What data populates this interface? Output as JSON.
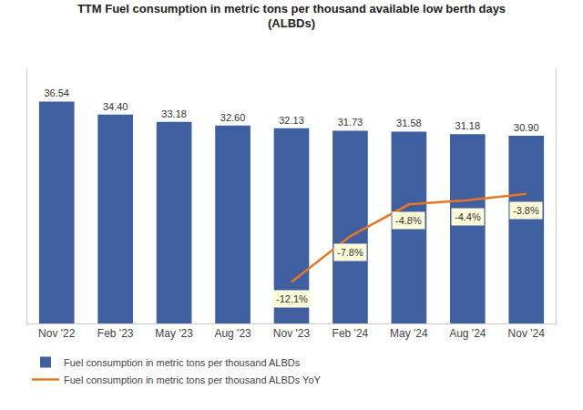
{
  "chart_data": {
    "type": "bar",
    "title": "TTM Fuel consumption in metric tons per thousand available low berth days\n(ALBDs)",
    "categories": [
      "Nov '22",
      "Feb '23",
      "May '23",
      "Aug '23",
      "Nov '23",
      "Feb '24",
      "May '24",
      "Aug '24",
      "Nov '24"
    ],
    "series": [
      {
        "name": "Fuel consumption in metric tons per thousand ALBDs",
        "type": "bar",
        "color": "#3F5FA0",
        "values": [
          36.54,
          34.4,
          33.18,
          32.6,
          32.13,
          31.73,
          31.58,
          31.18,
          30.9
        ],
        "value_labels": [
          "36.54",
          "34.40",
          "33.18",
          "32.60",
          "32.13",
          "31.73",
          "31.58",
          "31.18",
          "30.90"
        ]
      },
      {
        "name": "Fuel consumption in metric tons per thousand ALBDs YoY",
        "type": "line",
        "axis": "y2",
        "color": "#E87722",
        "values": [
          null,
          null,
          null,
          null,
          -12.1,
          -7.8,
          -4.8,
          -4.4,
          -3.8
        ],
        "value_labels": [
          null,
          null,
          null,
          null,
          "-12.1%",
          "-7.8%",
          "-4.8%",
          "-4.4%",
          "-3.8%"
        ]
      }
    ],
    "ylim": [
      0,
      42
    ],
    "y2lim": [
      -16,
      8
    ],
    "data_labels": true,
    "tick_labels": "x",
    "grid": false,
    "legend": "lower left"
  }
}
